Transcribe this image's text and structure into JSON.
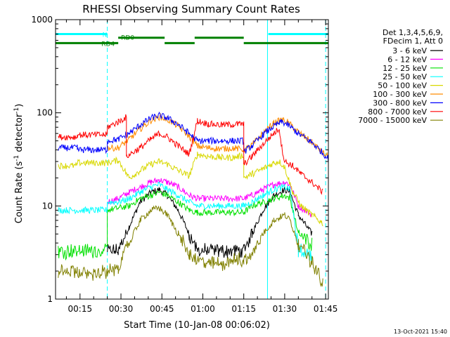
{
  "chart_data": {
    "type": "line",
    "title": "RHESSI Observing Summary Count Rates",
    "xlabel": "Start Time (10-Jan-08 00:06:02)",
    "ylabel_parts": [
      "Count Rate (s",
      "-1",
      " detector",
      "-1",
      ")"
    ],
    "y_scale": "log",
    "ylim": [
      1,
      1000
    ],
    "xlim_minutes": [
      6.03,
      106.0
    ],
    "x_ticks": [
      {
        "m": 15,
        "label": "00:15"
      },
      {
        "m": 30,
        "label": "00:30"
      },
      {
        "m": 45,
        "label": "00:45"
      },
      {
        "m": 60,
        "label": "01:00"
      },
      {
        "m": 75,
        "label": "01:15"
      },
      {
        "m": 90,
        "label": "01:30"
      },
      {
        "m": 105,
        "label": "01:45"
      }
    ],
    "y_ticks": [
      {
        "v": 1,
        "label": "1"
      },
      {
        "v": 10,
        "label": "10"
      },
      {
        "v": 100,
        "label": "100"
      },
      {
        "v": 1000,
        "label": "1000"
      }
    ],
    "legend_header": [
      "Det 1,3,4,5,6,9,",
      "FDecim 1, Att 0"
    ],
    "series": [
      {
        "name": "3 - 6 keV",
        "color": "#000000",
        "points": [
          [
            25,
            3.3
          ],
          [
            29,
            3.3
          ],
          [
            33,
            6
          ],
          [
            37,
            11
          ],
          [
            41,
            14
          ],
          [
            44,
            15
          ],
          [
            47,
            13
          ],
          [
            51,
            9
          ],
          [
            55,
            5
          ],
          [
            58,
            3.3
          ],
          [
            75,
            3.3
          ],
          [
            78,
            5
          ],
          [
            82,
            9
          ],
          [
            86,
            13
          ],
          [
            90,
            15
          ],
          [
            92,
            14
          ],
          [
            95,
            8
          ],
          [
            100,
            5
          ]
        ]
      },
      {
        "name": "6 - 12 keV",
        "color": "#ff00ff",
        "points": [
          [
            25,
            11
          ],
          [
            29,
            12
          ],
          [
            33,
            14
          ],
          [
            37,
            16
          ],
          [
            41,
            18
          ],
          [
            44,
            19
          ],
          [
            47,
            18
          ],
          [
            51,
            16
          ],
          [
            55,
            13
          ],
          [
            58,
            12
          ],
          [
            75,
            12
          ],
          [
            78,
            13
          ],
          [
            82,
            15
          ],
          [
            86,
            17
          ],
          [
            90,
            18
          ],
          [
            92,
            17
          ],
          [
            95,
            10
          ],
          [
            100,
            8
          ]
        ]
      },
      {
        "name": "12 - 25 keV",
        "color": "#00e000",
        "points": [
          [
            7,
            3.3
          ],
          [
            25,
            3.3
          ],
          [
            25,
            9
          ],
          [
            33,
            10
          ],
          [
            37,
            12
          ],
          [
            41,
            13
          ],
          [
            44,
            14
          ],
          [
            47,
            13
          ],
          [
            51,
            11
          ],
          [
            55,
            9
          ],
          [
            58,
            8.5
          ],
          [
            75,
            8.5
          ],
          [
            78,
            10
          ],
          [
            82,
            11
          ],
          [
            86,
            12
          ],
          [
            90,
            13
          ],
          [
            92,
            12
          ],
          [
            95,
            5
          ],
          [
            100,
            4
          ]
        ]
      },
      {
        "name": "25 - 50 keV",
        "color": "#00ffff",
        "points": [
          [
            7,
            9
          ],
          [
            25,
            9
          ],
          [
            25,
            11
          ],
          [
            29,
            11
          ],
          [
            33,
            12
          ],
          [
            37,
            14
          ],
          [
            41,
            16
          ],
          [
            44,
            17
          ],
          [
            47,
            15
          ],
          [
            51,
            13
          ],
          [
            55,
            11
          ],
          [
            58,
            10
          ],
          [
            75,
            10
          ],
          [
            78,
            11
          ],
          [
            82,
            13
          ],
          [
            86,
            15
          ],
          [
            90,
            16
          ],
          [
            92,
            15
          ],
          [
            95,
            3.3
          ],
          [
            100,
            3
          ]
        ]
      },
      {
        "name": "50 - 100 keV",
        "color": "#d8d800",
        "points": [
          [
            7,
            27
          ],
          [
            14,
            27
          ],
          [
            14,
            29
          ],
          [
            25,
            29
          ],
          [
            29,
            31
          ],
          [
            33,
            20
          ],
          [
            37,
            24
          ],
          [
            41,
            28
          ],
          [
            44,
            30
          ],
          [
            47,
            28
          ],
          [
            51,
            24
          ],
          [
            55,
            21
          ],
          [
            58,
            36
          ],
          [
            62,
            34
          ],
          [
            67,
            33
          ],
          [
            71,
            33
          ],
          [
            75,
            35
          ],
          [
            75,
            20
          ],
          [
            78,
            22
          ],
          [
            82,
            25
          ],
          [
            86,
            29
          ],
          [
            88,
            30
          ],
          [
            90,
            26
          ],
          [
            93,
            14
          ],
          [
            96,
            10
          ],
          [
            100,
            8
          ],
          [
            104,
            6.5
          ]
        ]
      },
      {
        "name": "100 - 300 keV",
        "color": "#ff8c00",
        "points": [
          [
            25,
            42
          ],
          [
            29,
            42
          ],
          [
            33,
            52
          ],
          [
            37,
            67
          ],
          [
            41,
            82
          ],
          [
            44,
            90
          ],
          [
            47,
            85
          ],
          [
            51,
            72
          ],
          [
            55,
            56
          ],
          [
            58,
            44
          ],
          [
            62,
            42
          ],
          [
            67,
            41
          ],
          [
            71,
            42
          ],
          [
            75,
            40
          ],
          [
            78,
            45
          ],
          [
            82,
            60
          ],
          [
            86,
            78
          ],
          [
            89,
            84
          ],
          [
            91,
            80
          ],
          [
            95,
            62
          ],
          [
            100,
            48
          ],
          [
            104,
            37
          ],
          [
            106,
            34
          ]
        ]
      },
      {
        "name": "300 - 800 keV",
        "color": "#0000ff",
        "points": [
          [
            7,
            42
          ],
          [
            14,
            42
          ],
          [
            14,
            40
          ],
          [
            25,
            40
          ],
          [
            25,
            50
          ],
          [
            29,
            52
          ],
          [
            33,
            60
          ],
          [
            37,
            74
          ],
          [
            41,
            88
          ],
          [
            44,
            94
          ],
          [
            47,
            88
          ],
          [
            51,
            75
          ],
          [
            55,
            60
          ],
          [
            58,
            50
          ],
          [
            62,
            50
          ],
          [
            67,
            50
          ],
          [
            71,
            50
          ],
          [
            75,
            50
          ],
          [
            75,
            38
          ],
          [
            78,
            44
          ],
          [
            82,
            58
          ],
          [
            86,
            72
          ],
          [
            89,
            80
          ],
          [
            91,
            75
          ],
          [
            95,
            60
          ],
          [
            100,
            48
          ],
          [
            104,
            37
          ],
          [
            106,
            32
          ]
        ]
      },
      {
        "name": "800 - 7000 keV",
        "color": "#ff0000",
        "points": [
          [
            7,
            55
          ],
          [
            14,
            55
          ],
          [
            14,
            58
          ],
          [
            25,
            58
          ],
          [
            25,
            70
          ],
          [
            29,
            80
          ],
          [
            32,
            90
          ],
          [
            32,
            34
          ],
          [
            37,
            42
          ],
          [
            41,
            52
          ],
          [
            44,
            60
          ],
          [
            47,
            55
          ],
          [
            51,
            44
          ],
          [
            55,
            36
          ],
          [
            58,
            82
          ],
          [
            62,
            76
          ],
          [
            67,
            74
          ],
          [
            71,
            75
          ],
          [
            75,
            76
          ],
          [
            75,
            28
          ],
          [
            78,
            34
          ],
          [
            82,
            46
          ],
          [
            86,
            60
          ],
          [
            88,
            68
          ],
          [
            89,
            42
          ],
          [
            90,
            30
          ],
          [
            93,
            27
          ],
          [
            96,
            22
          ],
          [
            100,
            18
          ],
          [
            104,
            14
          ]
        ]
      },
      {
        "name": "7000 - 15000 keV",
        "color": "#808000",
        "points": [
          [
            7,
            2
          ],
          [
            14,
            2
          ],
          [
            14,
            1.9
          ],
          [
            25,
            1.9
          ],
          [
            29,
            2.2
          ],
          [
            33,
            4
          ],
          [
            37,
            7
          ],
          [
            41,
            9
          ],
          [
            44,
            9.5
          ],
          [
            47,
            8
          ],
          [
            51,
            5
          ],
          [
            55,
            3
          ],
          [
            58,
            2.6
          ],
          [
            62,
            2.4
          ],
          [
            67,
            2.4
          ],
          [
            71,
            2.6
          ],
          [
            75,
            2.6
          ],
          [
            78,
            3
          ],
          [
            82,
            5
          ],
          [
            86,
            7
          ],
          [
            90,
            8
          ],
          [
            92,
            7
          ],
          [
            95,
            4
          ],
          [
            100,
            2.5
          ],
          [
            104,
            1.5
          ]
        ]
      }
    ],
    "annotations": [
      {
        "name": "N",
        "color": "#00ffff",
        "segments": [
          [
            6,
            25
          ],
          [
            84,
            106
          ]
        ],
        "level": 700
      },
      {
        "name": "RD0",
        "color": "#008000",
        "segments": [
          [
            29,
            46
          ],
          [
            57,
            75
          ]
        ],
        "level": 640
      },
      {
        "name": "RD4",
        "color": "#008000",
        "segments": [
          [
            6,
            29
          ],
          [
            46,
            57
          ],
          [
            75,
            106
          ]
        ],
        "level": 560
      }
    ],
    "vlines": [
      {
        "m": 25.0,
        "color": "#00ffff",
        "style": "dashed"
      },
      {
        "m": 83.7,
        "color": "#00ffff",
        "style": "solid"
      },
      {
        "m": 105.0,
        "color": "#00ffff",
        "style": "dashed"
      }
    ]
  },
  "footer": {
    "date": "13-Oct-2021 15:40"
  }
}
